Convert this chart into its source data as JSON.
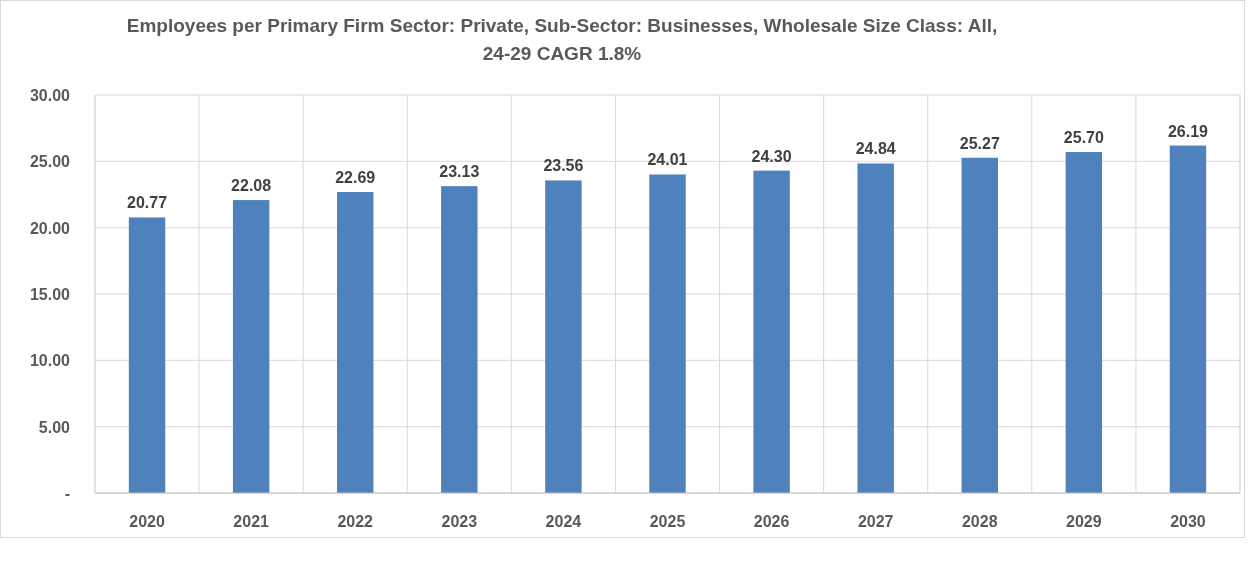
{
  "chart_data": {
    "type": "bar",
    "title": "Employees per Primary Firm Sector: Private, Sub-Sector: Businesses, Wholesale Size Class: All,",
    "subtitle": "24-29 CAGR 1.8%",
    "categories": [
      "2020",
      "2021",
      "2022",
      "2023",
      "2024",
      "2025",
      "2026",
      "2027",
      "2028",
      "2029",
      "2030"
    ],
    "values": [
      20.77,
      22.08,
      22.69,
      23.13,
      23.56,
      24.01,
      24.3,
      24.84,
      25.27,
      25.7,
      26.19
    ],
    "value_labels": [
      "20.77",
      "22.08",
      "22.69",
      "23.13",
      "23.56",
      "24.01",
      "24.30",
      "24.84",
      "25.27",
      "25.70",
      "26.19"
    ],
    "color": "#4f81bd",
    "ylim": [
      0,
      30
    ],
    "yticks": [
      {
        "value": 0,
        "label": "-"
      },
      {
        "value": 5,
        "label": "5.00"
      },
      {
        "value": 10,
        "label": "10.00"
      },
      {
        "value": 15,
        "label": "15.00"
      },
      {
        "value": 20,
        "label": "20.00"
      },
      {
        "value": 25,
        "label": "25.00"
      },
      {
        "value": 30,
        "label": "30.00"
      }
    ],
    "grid": true
  }
}
